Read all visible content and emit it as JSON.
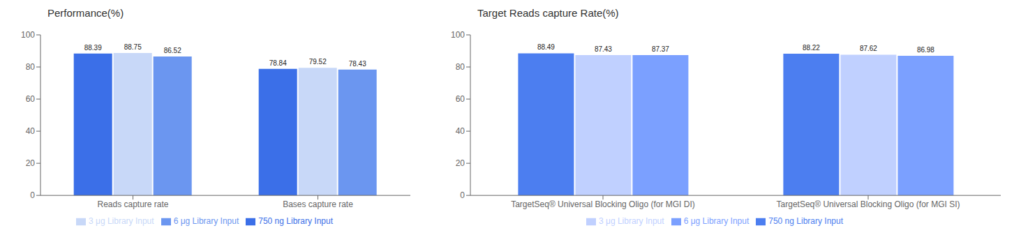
{
  "chart_data": [
    {
      "type": "bar",
      "title": "Performance(%)",
      "categories": [
        "Reads capture rate",
        "Bases capture rate"
      ],
      "series": [
        {
          "name": "750 ng Library Input",
          "color": "#3B6FE8",
          "values": [
            88.39,
            78.84
          ]
        },
        {
          "name": "3 μg Library Input",
          "color": "#C8D8F8",
          "values": [
            88.75,
            79.52
          ]
        },
        {
          "name": "6 μg Library Input",
          "color": "#6B96F0",
          "values": [
            86.52,
            78.43
          ]
        }
      ],
      "ylim": [
        0,
        100
      ],
      "yticks": [
        0,
        20,
        40,
        60,
        80,
        100
      ],
      "grid": false,
      "legend": "bottom",
      "data_labels": true
    },
    {
      "type": "bar",
      "title": "Target Reads capture Rate(%)",
      "categories": [
        "TargetSeq® Universal Blocking Oligo (for MGI DI)",
        "TargetSeq® Universal Blocking Oligo (for MGI SI)"
      ],
      "series": [
        {
          "name": "750 ng Library Input",
          "color": "#4C7EF0",
          "values": [
            88.49,
            88.22
          ]
        },
        {
          "name": "3 μg Library Input",
          "color": "#C0D0FF",
          "values": [
            87.43,
            87.62
          ]
        },
        {
          "name": "6 μg Library Input",
          "color": "#7BA0FF",
          "values": [
            87.37,
            86.98
          ]
        }
      ],
      "ylim": [
        0,
        100
      ],
      "yticks": [
        0,
        20,
        40,
        60,
        80,
        100
      ],
      "grid": false,
      "legend": "bottom",
      "data_labels": true
    }
  ]
}
